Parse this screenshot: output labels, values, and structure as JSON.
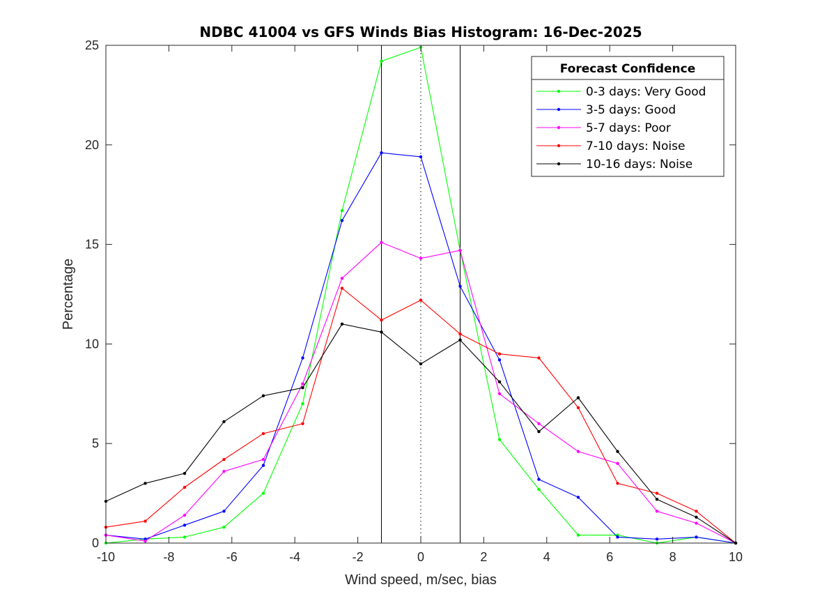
{
  "chart_data": {
    "type": "line",
    "title": "NDBC 41004 vs GFS Winds Bias Histogram: 16-Dec-2025",
    "xlabel": "Wind speed, m/sec, bias",
    "ylabel": "Percentage",
    "xlim": [
      -10,
      10
    ],
    "ylim": [
      0,
      25
    ],
    "xticks": [
      -10,
      -8,
      -6,
      -4,
      -2,
      0,
      2,
      4,
      6,
      8,
      10
    ],
    "yticks": [
      0,
      5,
      10,
      15,
      20,
      25
    ],
    "reference_lines": {
      "solid": [
        -1.25,
        1.25
      ],
      "dotted": [
        0
      ]
    },
    "legend": {
      "title": "Forecast Confidence",
      "position": "top-right"
    },
    "x": [
      -10,
      -8.75,
      -7.5,
      -6.25,
      -5,
      -3.75,
      -2.5,
      -1.25,
      0,
      1.25,
      2.5,
      3.75,
      5,
      6.25,
      7.5,
      8.75,
      10
    ],
    "series": [
      {
        "name": "0-3 days: Very Good",
        "color": "#00ff00",
        "values": [
          0.0,
          0.2,
          0.3,
          0.8,
          2.5,
          7.0,
          16.7,
          24.2,
          24.9,
          14.7,
          5.2,
          2.7,
          0.4,
          0.4,
          0.0,
          0.3,
          0.0
        ]
      },
      {
        "name": "3-5 days: Good",
        "color": "#0000ff",
        "values": [
          0.4,
          0.2,
          0.9,
          1.6,
          3.9,
          9.3,
          16.2,
          19.6,
          19.4,
          12.9,
          9.2,
          3.2,
          2.3,
          0.3,
          0.2,
          0.3,
          0.0
        ]
      },
      {
        "name": "5-7 days: Poor",
        "color": "#ff00ff",
        "values": [
          0.4,
          0.1,
          1.4,
          3.6,
          4.2,
          8.0,
          13.3,
          15.1,
          14.3,
          14.7,
          7.5,
          6.0,
          4.6,
          4.0,
          1.6,
          1.0,
          0.0
        ]
      },
      {
        "name": "7-10 days: Noise",
        "color": "#ff0000",
        "values": [
          0.8,
          1.1,
          2.8,
          4.2,
          5.5,
          6.0,
          12.8,
          11.2,
          12.2,
          10.5,
          9.5,
          9.3,
          6.8,
          3.0,
          2.5,
          1.6,
          0.0
        ]
      },
      {
        "name": "10-16 days: Noise",
        "color": "#000000",
        "values": [
          2.1,
          3.0,
          3.5,
          6.1,
          7.4,
          7.8,
          11.0,
          10.6,
          9.0,
          10.2,
          8.1,
          5.6,
          7.3,
          4.6,
          2.2,
          1.3,
          0.0
        ]
      }
    ]
  }
}
